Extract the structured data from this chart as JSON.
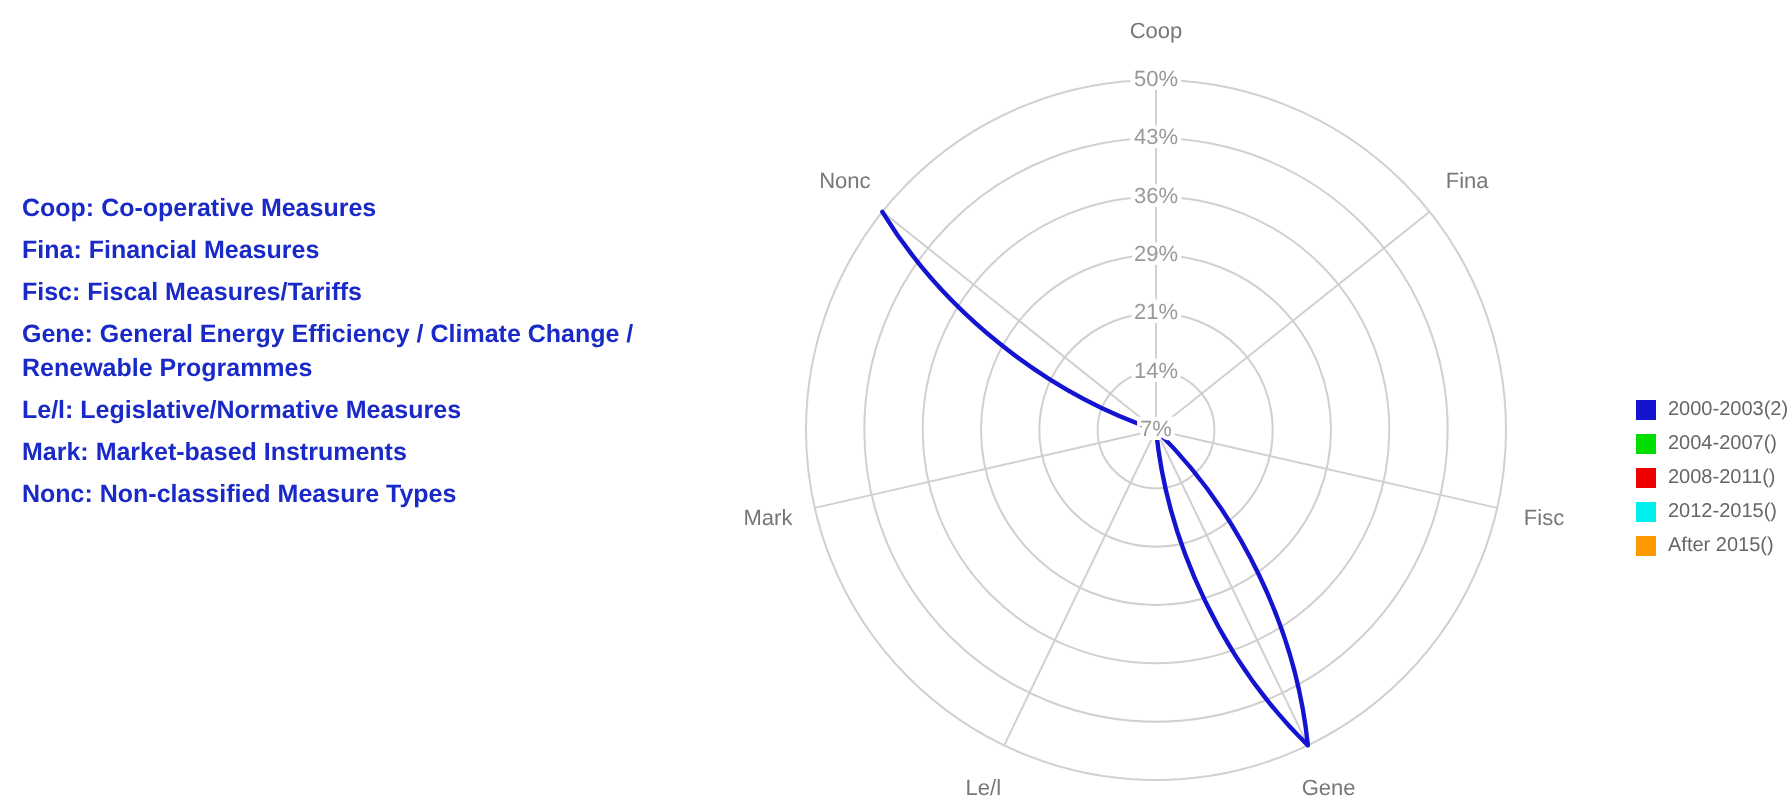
{
  "chart_data": {
    "type": "radar",
    "categories": [
      "Coop",
      "Fina",
      "Fisc",
      "Gene",
      "Le/l",
      "Mark",
      "Nonc"
    ],
    "series": [
      {
        "name": "2000-2003(2)",
        "color": "#1414d0",
        "values": [
          7.14,
          7.14,
          7.14,
          50,
          7.14,
          7.14,
          50
        ]
      },
      {
        "name": "2004-2007()",
        "color": "#00dd00",
        "values": [
          null,
          null,
          null,
          null,
          null,
          null,
          null
        ]
      },
      {
        "name": "2008-2011()",
        "color": "#ee0000",
        "values": [
          null,
          null,
          null,
          null,
          null,
          null,
          null
        ]
      },
      {
        "name": "2012-2015()",
        "color": "#00eeee",
        "values": [
          null,
          null,
          null,
          null,
          null,
          null,
          null
        ]
      },
      {
        "name": "After 2015()",
        "color": "#ff9900",
        "values": [
          null,
          null,
          null,
          null,
          null,
          null,
          null
        ]
      }
    ],
    "ylim": [
      7.14,
      50
    ],
    "yticks": [
      {
        "value": 7.14,
        "label": "7%"
      },
      {
        "value": 14.29,
        "label": "14%"
      },
      {
        "value": 21.43,
        "label": "21%"
      },
      {
        "value": 28.57,
        "label": "29%"
      },
      {
        "value": 35.71,
        "label": "36%"
      },
      {
        "value": 42.86,
        "label": "43%"
      },
      {
        "value": 50,
        "label": "50%"
      }
    ],
    "grid": true,
    "legend": "right",
    "annotations": [
      "Coop: Co-operative Measures",
      "Fina: Financial Measures",
      "Fisc: Fiscal Measures/Tariffs",
      "Gene: General Energy Efficiency / Climate Change / Renewable Programmes",
      "Le/l: Legislative/Normative Measures",
      "Mark: Market-based Instruments",
      "Nonc: Non-classified Measure Types"
    ]
  }
}
